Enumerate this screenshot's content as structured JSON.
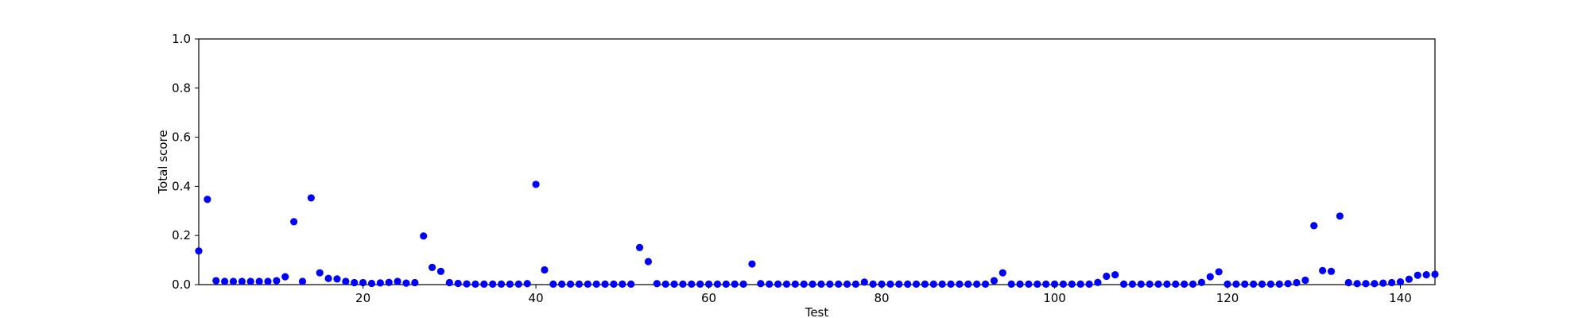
{
  "chart_data": {
    "type": "scatter",
    "xlabel": "Test",
    "ylabel": "Total score",
    "xlim": [
      1,
      144
    ],
    "ylim": [
      0.0,
      1.0
    ],
    "xticks": [
      20,
      40,
      60,
      80,
      100,
      120,
      140
    ],
    "xtick_labels": [
      "20",
      "40",
      "60",
      "80",
      "100",
      "120",
      "140"
    ],
    "yticks": [
      0.0,
      0.2,
      0.4,
      0.6,
      0.8,
      1.0
    ],
    "ytick_labels": [
      "0.0",
      "0.2",
      "0.4",
      "0.6",
      "0.8",
      "1.0"
    ],
    "marker_color": "#0000ff",
    "grid": false,
    "series": [
      {
        "points": [
          [
            1,
            0.137
          ],
          [
            2,
            0.347
          ],
          [
            3,
            0.016
          ],
          [
            4,
            0.013
          ],
          [
            5,
            0.013
          ],
          [
            6,
            0.013
          ],
          [
            7,
            0.013
          ],
          [
            8,
            0.013
          ],
          [
            9,
            0.013
          ],
          [
            10,
            0.016
          ],
          [
            11,
            0.032
          ],
          [
            12,
            0.256
          ],
          [
            13,
            0.013
          ],
          [
            14,
            0.353
          ],
          [
            15,
            0.048
          ],
          [
            16,
            0.025
          ],
          [
            17,
            0.023
          ],
          [
            18,
            0.013
          ],
          [
            19,
            0.008
          ],
          [
            20,
            0.008
          ],
          [
            21,
            0.005
          ],
          [
            22,
            0.007
          ],
          [
            23,
            0.009
          ],
          [
            24,
            0.013
          ],
          [
            25,
            0.006
          ],
          [
            26,
            0.008
          ],
          [
            27,
            0.198
          ],
          [
            28,
            0.07
          ],
          [
            29,
            0.054
          ],
          [
            30,
            0.008
          ],
          [
            31,
            0.005
          ],
          [
            32,
            0.003
          ],
          [
            33,
            0.002
          ],
          [
            34,
            0.002
          ],
          [
            35,
            0.002
          ],
          [
            36,
            0.002
          ],
          [
            37,
            0.002
          ],
          [
            38,
            0.002
          ],
          [
            39,
            0.004
          ],
          [
            40,
            0.408
          ],
          [
            41,
            0.06
          ],
          [
            42,
            0.002
          ],
          [
            43,
            0.002
          ],
          [
            44,
            0.002
          ],
          [
            45,
            0.002
          ],
          [
            46,
            0.002
          ],
          [
            47,
            0.002
          ],
          [
            48,
            0.002
          ],
          [
            49,
            0.002
          ],
          [
            50,
            0.002
          ],
          [
            51,
            0.002
          ],
          [
            52,
            0.151
          ],
          [
            53,
            0.094
          ],
          [
            54,
            0.004
          ],
          [
            55,
            0.002
          ],
          [
            56,
            0.002
          ],
          [
            57,
            0.002
          ],
          [
            58,
            0.002
          ],
          [
            59,
            0.002
          ],
          [
            60,
            0.002
          ],
          [
            61,
            0.002
          ],
          [
            62,
            0.002
          ],
          [
            63,
            0.002
          ],
          [
            64,
            0.002
          ],
          [
            65,
            0.084
          ],
          [
            66,
            0.004
          ],
          [
            67,
            0.002
          ],
          [
            68,
            0.002
          ],
          [
            69,
            0.002
          ],
          [
            70,
            0.002
          ],
          [
            71,
            0.002
          ],
          [
            72,
            0.002
          ],
          [
            73,
            0.002
          ],
          [
            74,
            0.002
          ],
          [
            75,
            0.002
          ],
          [
            76,
            0.002
          ],
          [
            77,
            0.002
          ],
          [
            78,
            0.01
          ],
          [
            79,
            0.002
          ],
          [
            80,
            0.002
          ],
          [
            81,
            0.002
          ],
          [
            82,
            0.002
          ],
          [
            83,
            0.002
          ],
          [
            84,
            0.002
          ],
          [
            85,
            0.002
          ],
          [
            86,
            0.002
          ],
          [
            87,
            0.002
          ],
          [
            88,
            0.002
          ],
          [
            89,
            0.002
          ],
          [
            90,
            0.002
          ],
          [
            91,
            0.002
          ],
          [
            92,
            0.002
          ],
          [
            93,
            0.016
          ],
          [
            94,
            0.048
          ],
          [
            95,
            0.002
          ],
          [
            96,
            0.002
          ],
          [
            97,
            0.002
          ],
          [
            98,
            0.002
          ],
          [
            99,
            0.002
          ],
          [
            100,
            0.002
          ],
          [
            101,
            0.002
          ],
          [
            102,
            0.002
          ],
          [
            103,
            0.002
          ],
          [
            104,
            0.002
          ],
          [
            105,
            0.009
          ],
          [
            106,
            0.034
          ],
          [
            107,
            0.04
          ],
          [
            108,
            0.002
          ],
          [
            109,
            0.002
          ],
          [
            110,
            0.002
          ],
          [
            111,
            0.002
          ],
          [
            112,
            0.002
          ],
          [
            113,
            0.002
          ],
          [
            114,
            0.002
          ],
          [
            115,
            0.002
          ],
          [
            116,
            0.002
          ],
          [
            117,
            0.009
          ],
          [
            118,
            0.032
          ],
          [
            119,
            0.052
          ],
          [
            120,
            0.002
          ],
          [
            121,
            0.002
          ],
          [
            122,
            0.002
          ],
          [
            123,
            0.002
          ],
          [
            124,
            0.002
          ],
          [
            125,
            0.002
          ],
          [
            126,
            0.002
          ],
          [
            127,
            0.004
          ],
          [
            128,
            0.008
          ],
          [
            129,
            0.018
          ],
          [
            130,
            0.24
          ],
          [
            131,
            0.057
          ],
          [
            132,
            0.054
          ],
          [
            133,
            0.279
          ],
          [
            134,
            0.008
          ],
          [
            135,
            0.004
          ],
          [
            136,
            0.004
          ],
          [
            137,
            0.004
          ],
          [
            138,
            0.006
          ],
          [
            139,
            0.008
          ],
          [
            140,
            0.011
          ],
          [
            141,
            0.022
          ],
          [
            142,
            0.038
          ],
          [
            143,
            0.04
          ],
          [
            144,
            0.042
          ]
        ]
      }
    ]
  }
}
